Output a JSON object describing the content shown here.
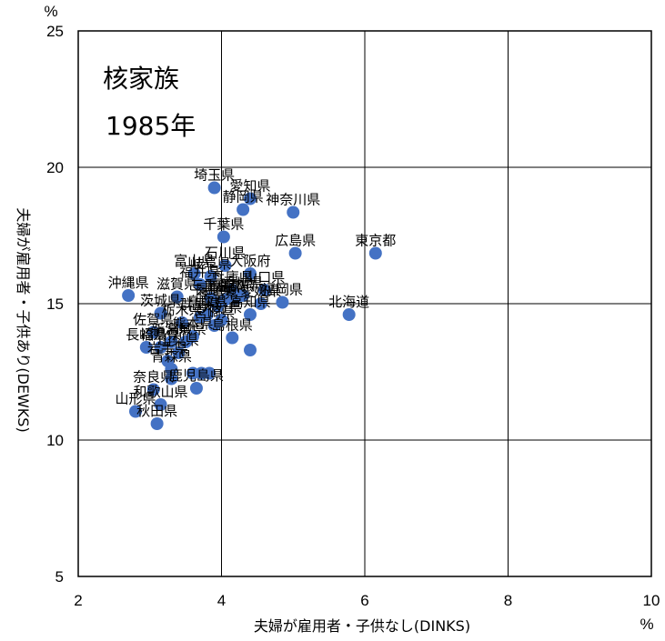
{
  "chart_data": {
    "type": "scatter",
    "title": "核家族",
    "subtitle": "1985年",
    "xlabel": "夫婦が雇用者・子供なし(DINKS)",
    "ylabel": "夫婦が雇用者・子供あり(DEWKS)",
    "x_unit": "%",
    "y_unit": "%",
    "xlim": [
      2,
      10
    ],
    "ylim": [
      5,
      25
    ],
    "xticks": [
      "2",
      "4",
      "6",
      "8",
      "10"
    ],
    "yticks": [
      "5",
      "10",
      "15",
      "20",
      "25"
    ],
    "grid": true,
    "legend": "none",
    "marker_color": "#4472C4",
    "points": [
      {
        "label": "埼玉県",
        "x": 3.9,
        "y": 19.25
      },
      {
        "label": "愛知県",
        "x": 4.4,
        "y": 18.85
      },
      {
        "label": "静岡県",
        "x": 4.3,
        "y": 18.45
      },
      {
        "label": "神奈川県",
        "x": 5.0,
        "y": 18.35
      },
      {
        "label": "千葉県",
        "x": 4.03,
        "y": 17.45
      },
      {
        "label": "東京都",
        "x": 6.15,
        "y": 16.85
      },
      {
        "label": "広島県",
        "x": 5.03,
        "y": 16.85
      },
      {
        "label": "石川県",
        "x": 4.05,
        "y": 16.4
      },
      {
        "label": "大阪府",
        "x": 4.4,
        "y": 16.1
      },
      {
        "label": "富山県",
        "x": 3.62,
        "y": 16.1
      },
      {
        "label": "岐阜県",
        "x": 3.85,
        "y": 16.0
      },
      {
        "label": "福井県",
        "x": 3.7,
        "y": 15.7
      },
      {
        "label": "山口県",
        "x": 4.6,
        "y": 15.5
      },
      {
        "label": "沖縄県",
        "x": 2.7,
        "y": 15.3
      },
      {
        "label": "滋賀県",
        "x": 3.38,
        "y": 15.25
      },
      {
        "label": "香川県",
        "x": 4.3,
        "y": 15.3
      },
      {
        "label": "兵庫県",
        "x": 4.15,
        "y": 15.5
      },
      {
        "label": "岡山県",
        "x": 4.05,
        "y": 15.15
      },
      {
        "label": "三重県",
        "x": 3.85,
        "y": 15.2
      },
      {
        "label": "京都府",
        "x": 4.2,
        "y": 15.2
      },
      {
        "label": "北海道",
        "x": 5.78,
        "y": 14.6
      },
      {
        "label": "福岡県",
        "x": 4.85,
        "y": 15.05
      },
      {
        "label": "愛媛県",
        "x": 4.55,
        "y": 15.0
      },
      {
        "label": "長野県",
        "x": 3.9,
        "y": 15.05
      },
      {
        "label": "徳島県",
        "x": 3.95,
        "y": 14.9
      },
      {
        "label": "鳥取県",
        "x": 3.8,
        "y": 14.6
      },
      {
        "label": "高知県",
        "x": 4.4,
        "y": 14.6
      },
      {
        "label": "大分県",
        "x": 4.0,
        "y": 14.4
      },
      {
        "label": "茨城県",
        "x": 3.15,
        "y": 14.65
      },
      {
        "label": "栃木県",
        "x": 3.45,
        "y": 14.3
      },
      {
        "label": "群馬県",
        "x": 3.7,
        "y": 14.5
      },
      {
        "label": "宮崎県",
        "x": 3.9,
        "y": 14.2
      },
      {
        "label": "佐賀県",
        "x": 3.05,
        "y": 13.95
      },
      {
        "label": "熊本県",
        "x": 3.6,
        "y": 13.8
      },
      {
        "label": "島根県",
        "x": 4.15,
        "y": 13.75
      },
      {
        "label": "宮城県",
        "x": 3.5,
        "y": 13.6
      },
      {
        "label": "新潟県",
        "x": 3.3,
        "y": 13.6
      },
      {
        "label": "福島県",
        "x": 3.15,
        "y": 13.4
      },
      {
        "label": "山梨県",
        "x": 3.4,
        "y": 13.2
      },
      {
        "label": "長崎県",
        "x": 2.95,
        "y": 13.4
      },
      {
        "label": "奈良県",
        "x": 3.05,
        "y": 11.85
      },
      {
        "label": "岩手県",
        "x": 3.25,
        "y": 12.9
      },
      {
        "label": "青森県",
        "x": 3.3,
        "y": 12.6
      },
      {
        "label": "山形県",
        "x": 2.8,
        "y": 11.05
      },
      {
        "label": "秋田県",
        "x": 3.1,
        "y": 10.6
      },
      {
        "label": "和歌山県",
        "x": 3.15,
        "y": 11.3
      },
      {
        "label": "鹿児島県",
        "x": 3.65,
        "y": 11.9
      },
      {
        "label": "",
        "x": 4.4,
        "y": 13.3
      },
      {
        "label": "",
        "x": 3.6,
        "y": 12.45
      },
      {
        "label": "",
        "x": 3.72,
        "y": 12.45
      },
      {
        "label": "",
        "x": 3.83,
        "y": 12.45
      },
      {
        "label": "",
        "x": 3.3,
        "y": 12.25
      }
    ]
  }
}
